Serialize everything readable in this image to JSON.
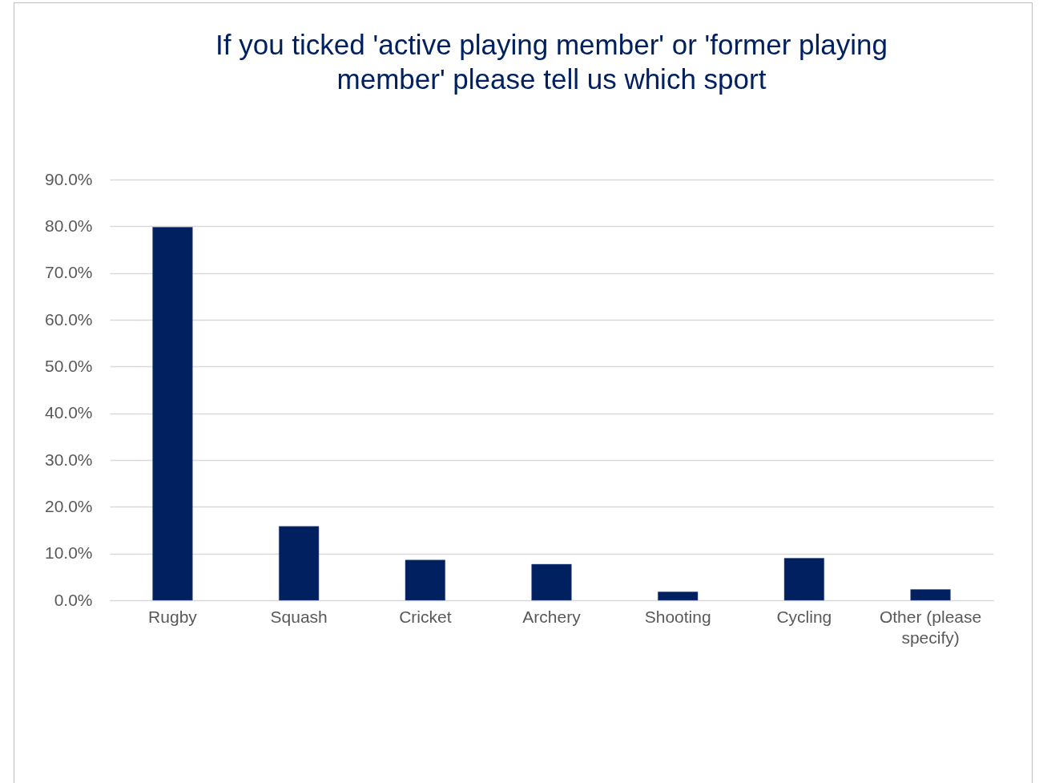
{
  "chart_data": {
    "type": "bar",
    "title": "If you ticked 'active playing member' or 'former playing member' please tell us which sport",
    "categories": [
      "Rugby",
      "Squash",
      "Cricket",
      "Archery",
      "Shooting",
      "Cycling",
      "Other (please specify)"
    ],
    "values": [
      79.8,
      15.8,
      8.6,
      7.7,
      1.8,
      9.0,
      2.3
    ],
    "color": "#002060",
    "ylim": [
      0,
      90
    ],
    "yticks": [
      {
        "value": 0,
        "label": "0.0%"
      },
      {
        "value": 10,
        "label": "10.0%"
      },
      {
        "value": 20,
        "label": "20.0%"
      },
      {
        "value": 30,
        "label": "30.0%"
      },
      {
        "value": 40,
        "label": "40.0%"
      },
      {
        "value": 50,
        "label": "50.0%"
      },
      {
        "value": 60,
        "label": "60.0%"
      },
      {
        "value": 70,
        "label": "70.0%"
      },
      {
        "value": 80,
        "label": "80.0%"
      },
      {
        "value": 90,
        "label": "90.0%"
      }
    ],
    "grid": "y"
  }
}
